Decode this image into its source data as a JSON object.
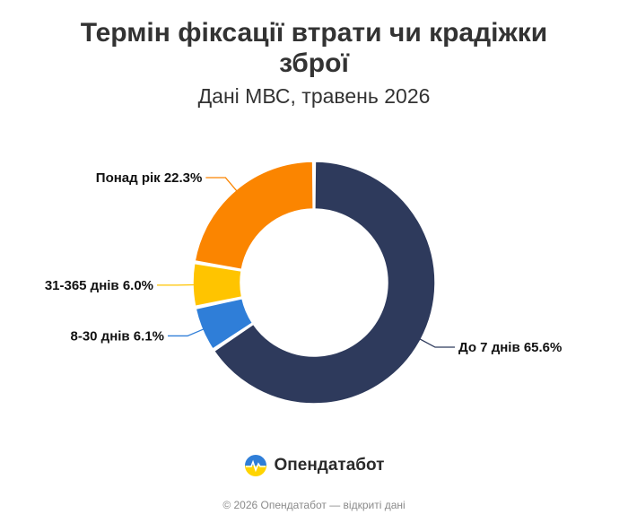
{
  "chart_data": {
    "type": "pie",
    "title": "Термін фіксації втрати чи крадіжки зброї",
    "subtitle": "Дані МВС, травень 2026",
    "slices": [
      {
        "label": "До 7 днів",
        "value": 65.6,
        "display": "До 7 днів 65.6%",
        "color": "#2e3a5c"
      },
      {
        "label": "8-30 днів",
        "value": 6.1,
        "display": "8-30 днів 6.1%",
        "color": "#2f7ed8"
      },
      {
        "label": "31-365 днів",
        "value": 6.0,
        "display": "31-365 днів 6.0%",
        "color": "#ffc400"
      },
      {
        "label": "Понад рік",
        "value": 22.3,
        "display": "Понад рік 22.3%",
        "color": "#fb8500"
      }
    ],
    "donut": true,
    "legend": "none"
  },
  "brand": {
    "name": "Опендатабот"
  },
  "footer": {
    "copyright": "© 2026 Опендатабот — відкриті дані"
  }
}
